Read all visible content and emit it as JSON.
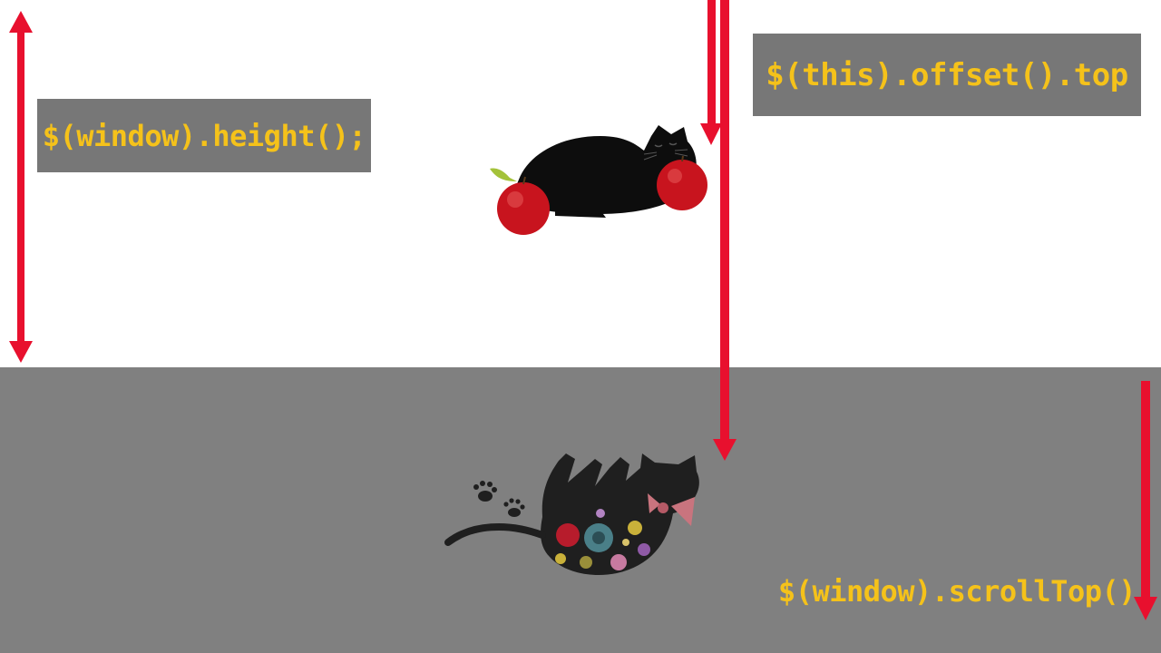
{
  "labels": {
    "window_height": "$(window).height();",
    "offset_top": "$(this).offset().top",
    "scroll_top": "$(window).scrollTop()"
  },
  "colors": {
    "arrow": "#e8102e",
    "label_text": "#f5c21a",
    "label_box": "#777777",
    "lower_area": "#808080",
    "background": "#ffffff"
  },
  "illustrations": {
    "top": "sleeping-black-cat-with-apples",
    "bottom": "black-cat-silhouette-with-flowers-and-bow"
  }
}
